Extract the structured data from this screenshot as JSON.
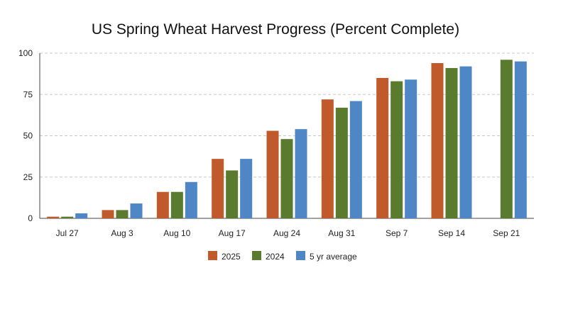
{
  "chart_data": {
    "type": "bar",
    "title": "US Spring Wheat Harvest Progress (Percent Complete)",
    "xlabel": "",
    "ylabel": "",
    "categories": [
      "Jul 27",
      "Aug 3",
      "Aug 10",
      "Aug 17",
      "Aug 24",
      "Aug 31",
      "Sep 7",
      "Sep 14",
      "Sep 21"
    ],
    "series": [
      {
        "name": "2025",
        "color": "#c0592b",
        "values": [
          1,
          5,
          16,
          36,
          53,
          72,
          85,
          94,
          null
        ]
      },
      {
        "name": "2024",
        "color": "#5a7a2e",
        "values": [
          1,
          5,
          16,
          29,
          48,
          67,
          83,
          91,
          96
        ]
      },
      {
        "name": "5 yr average",
        "color": "#4e86c6",
        "values": [
          3,
          9,
          22,
          36,
          54,
          71,
          84,
          92,
          95
        ]
      }
    ],
    "ylim": [
      0,
      100
    ],
    "yticks": [
      0,
      25,
      50,
      75,
      100
    ],
    "grid": true,
    "legend_position": "bottom"
  }
}
